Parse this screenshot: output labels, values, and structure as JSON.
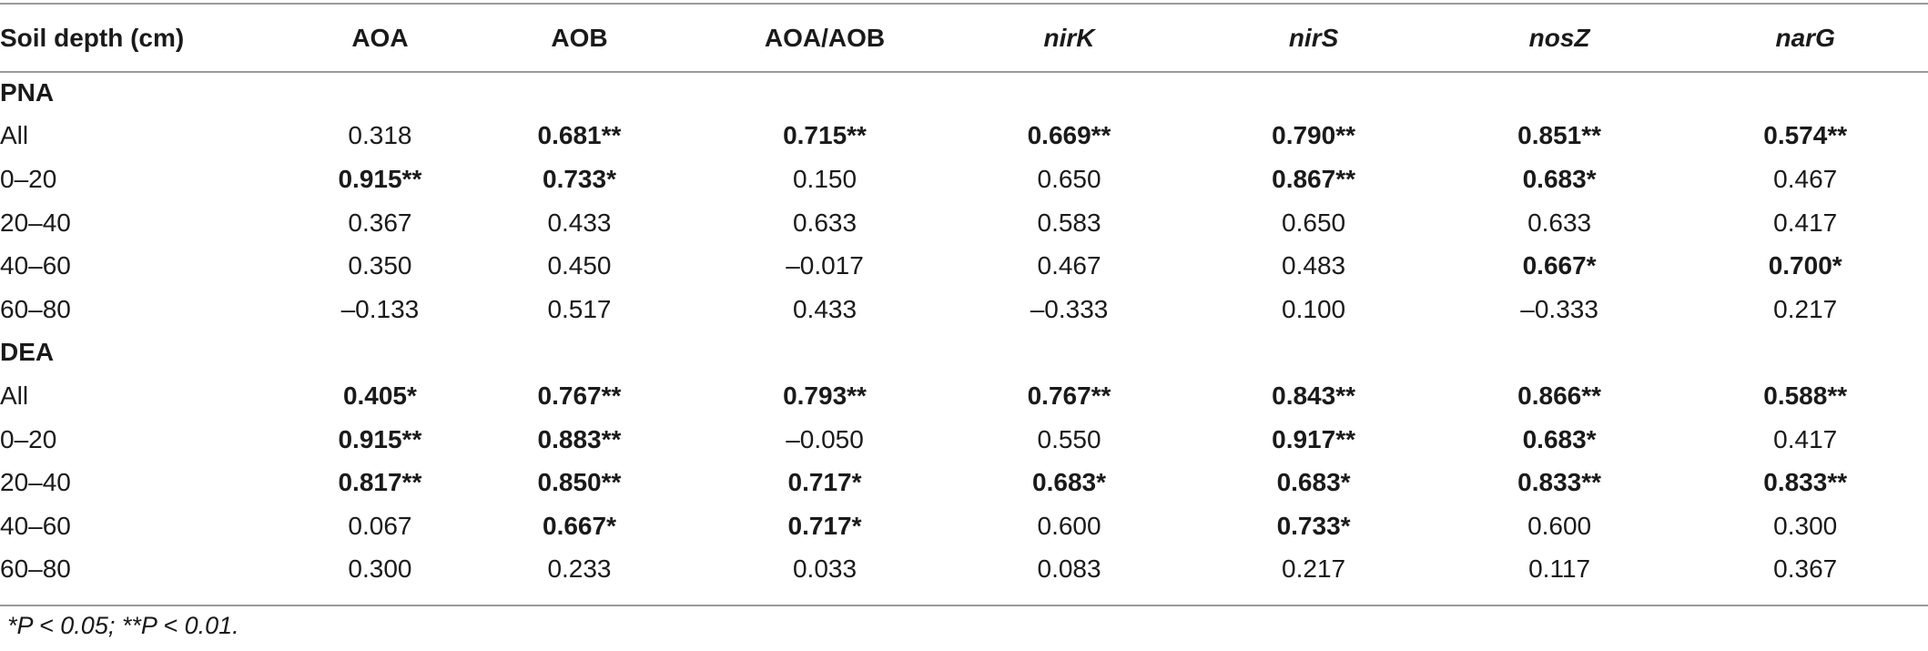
{
  "table": {
    "headers": [
      {
        "label": "Soil depth (cm)",
        "italic": false
      },
      {
        "label": "AOA",
        "italic": false
      },
      {
        "label": "AOB",
        "italic": false
      },
      {
        "label": "AOA/AOB",
        "italic": false
      },
      {
        "label": "nirK",
        "italic": true
      },
      {
        "label": "nirS",
        "italic": true
      },
      {
        "label": "nosZ",
        "italic": true
      },
      {
        "label": "narG",
        "italic": true
      }
    ],
    "sections": [
      {
        "title": "PNA",
        "rows": [
          {
            "depth": "All",
            "cells": [
              {
                "v": "0.318",
                "b": false
              },
              {
                "v": "0.681**",
                "b": true
              },
              {
                "v": "0.715**",
                "b": true
              },
              {
                "v": "0.669**",
                "b": true
              },
              {
                "v": "0.790**",
                "b": true
              },
              {
                "v": "0.851**",
                "b": true
              },
              {
                "v": "0.574**",
                "b": true
              }
            ]
          },
          {
            "depth": "0–20",
            "cells": [
              {
                "v": "0.915**",
                "b": true
              },
              {
                "v": "0.733*",
                "b": true
              },
              {
                "v": "0.150",
                "b": false
              },
              {
                "v": "0.650",
                "b": false
              },
              {
                "v": "0.867**",
                "b": true
              },
              {
                "v": "0.683*",
                "b": true
              },
              {
                "v": "0.467",
                "b": false
              }
            ]
          },
          {
            "depth": "20–40",
            "cells": [
              {
                "v": "0.367",
                "b": false
              },
              {
                "v": "0.433",
                "b": false
              },
              {
                "v": "0.633",
                "b": false
              },
              {
                "v": "0.583",
                "b": false
              },
              {
                "v": "0.650",
                "b": false
              },
              {
                "v": "0.633",
                "b": false
              },
              {
                "v": "0.417",
                "b": false
              }
            ]
          },
          {
            "depth": "40–60",
            "cells": [
              {
                "v": "0.350",
                "b": false
              },
              {
                "v": "0.450",
                "b": false
              },
              {
                "v": "–0.017",
                "b": false
              },
              {
                "v": "0.467",
                "b": false
              },
              {
                "v": "0.483",
                "b": false
              },
              {
                "v": "0.667*",
                "b": true
              },
              {
                "v": "0.700*",
                "b": true
              }
            ]
          },
          {
            "depth": "60–80",
            "cells": [
              {
                "v": "–0.133",
                "b": false
              },
              {
                "v": "0.517",
                "b": false
              },
              {
                "v": "0.433",
                "b": false
              },
              {
                "v": "–0.333",
                "b": false
              },
              {
                "v": "0.100",
                "b": false
              },
              {
                "v": "–0.333",
                "b": false
              },
              {
                "v": "0.217",
                "b": false
              }
            ]
          }
        ]
      },
      {
        "title": "DEA",
        "rows": [
          {
            "depth": "All",
            "cells": [
              {
                "v": "0.405*",
                "b": true
              },
              {
                "v": "0.767**",
                "b": true
              },
              {
                "v": "0.793**",
                "b": true
              },
              {
                "v": "0.767**",
                "b": true
              },
              {
                "v": "0.843**",
                "b": true
              },
              {
                "v": "0.866**",
                "b": true
              },
              {
                "v": "0.588**",
                "b": true
              }
            ]
          },
          {
            "depth": "0–20",
            "cells": [
              {
                "v": "0.915**",
                "b": true
              },
              {
                "v": "0.883**",
                "b": true
              },
              {
                "v": "–0.050",
                "b": false
              },
              {
                "v": "0.550",
                "b": false
              },
              {
                "v": "0.917**",
                "b": true
              },
              {
                "v": "0.683*",
                "b": true
              },
              {
                "v": "0.417",
                "b": false
              }
            ]
          },
          {
            "depth": "20–40",
            "cells": [
              {
                "v": "0.817**",
                "b": true
              },
              {
                "v": "0.850**",
                "b": true
              },
              {
                "v": "0.717*",
                "b": true
              },
              {
                "v": "0.683*",
                "b": true
              },
              {
                "v": "0.683*",
                "b": true
              },
              {
                "v": "0.833**",
                "b": true
              },
              {
                "v": "0.833**",
                "b": true
              }
            ]
          },
          {
            "depth": "40–60",
            "cells": [
              {
                "v": "0.067",
                "b": false
              },
              {
                "v": "0.667*",
                "b": true
              },
              {
                "v": "0.717*",
                "b": true
              },
              {
                "v": "0.600",
                "b": false
              },
              {
                "v": "0.733*",
                "b": true
              },
              {
                "v": "0.600",
                "b": false
              },
              {
                "v": "0.300",
                "b": false
              }
            ]
          },
          {
            "depth": "60–80",
            "cells": [
              {
                "v": "0.300",
                "b": false
              },
              {
                "v": "0.233",
                "b": false
              },
              {
                "v": "0.033",
                "b": false
              },
              {
                "v": "0.083",
                "b": false
              },
              {
                "v": "0.217",
                "b": false
              },
              {
                "v": "0.117",
                "b": false
              },
              {
                "v": "0.367",
                "b": false
              }
            ]
          }
        ]
      }
    ]
  },
  "footnote": "*P < 0.05; **P < 0.01.",
  "colors": {
    "rule": "#9a9a9a",
    "text": "#1a1a1a"
  }
}
